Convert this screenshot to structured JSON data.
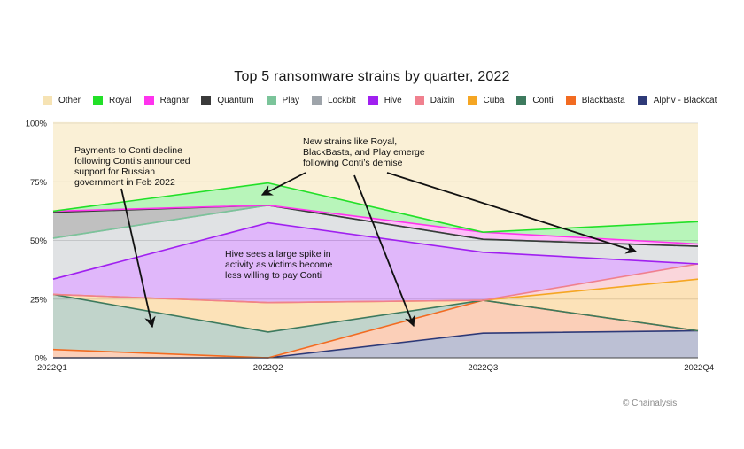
{
  "title": "Top 5 ransomware strains by quarter, 2022",
  "credit": "© Chainalysis",
  "chart_data": {
    "type": "area",
    "stacked": true,
    "title": "Top 5 ransomware strains by quarter, 2022",
    "xlabel": "",
    "ylabel": "",
    "categories": [
      "2022Q1",
      "2022Q2",
      "2022Q3",
      "2022Q4"
    ],
    "ylim": [
      0,
      100
    ],
    "yticks": [
      0,
      25,
      50,
      75,
      100
    ],
    "ytick_labels": [
      "0%",
      "25%",
      "50%",
      "75%",
      "100%"
    ],
    "grid": true,
    "legend_position": "top",
    "series": [
      {
        "name": "Alphv - Blackcat",
        "color": "#2e3a78",
        "values": [
          0,
          0,
          10.5,
          11.5
        ]
      },
      {
        "name": "Blackbasta",
        "color": "#f26b21",
        "values": [
          3.5,
          0,
          14,
          0
        ]
      },
      {
        "name": "Conti",
        "color": "#3d7a5e",
        "values": [
          23.5,
          11,
          0,
          0
        ]
      },
      {
        "name": "Cuba",
        "color": "#f5a623",
        "values": [
          0,
          12.5,
          0,
          22
        ]
      },
      {
        "name": "Daixin",
        "color": "#f0808e",
        "values": [
          0,
          0,
          0,
          6.5
        ]
      },
      {
        "name": "Hive",
        "color": "#a020f0",
        "values": [
          6.5,
          34,
          20.5,
          0
        ]
      },
      {
        "name": "Lockbit",
        "color": "#9ea4aa",
        "values": [
          17.5,
          7.5,
          5.5,
          7.5
        ]
      },
      {
        "name": "Play",
        "color": "#7bc49a",
        "values": [
          0,
          0,
          0,
          0
        ]
      },
      {
        "name": "Quantum",
        "color": "#3a3a3a",
        "values": [
          11,
          0,
          0,
          0
        ]
      },
      {
        "name": "Ragnar",
        "color": "#ff33ee",
        "values": [
          0.5,
          0,
          3,
          1
        ]
      },
      {
        "name": "Royal",
        "color": "#22e028",
        "values": [
          0,
          9.5,
          0,
          9.5
        ]
      },
      {
        "name": "Other",
        "color": "#f6e3b4",
        "values": [
          38,
          25.5,
          46.5,
          42
        ]
      }
    ],
    "annotations": [
      {
        "lines": [
          "Payments to Conti decline",
          "following Conti’s announced",
          "support for Russian",
          "government in Feb 2022"
        ]
      },
      {
        "lines": [
          "New strains like Royal,",
          "BlackBasta, and Play emerge",
          "following Conti’s demise"
        ]
      },
      {
        "lines": [
          "Hive sees a large spike in",
          "activity as victims become",
          "less willing to pay Conti"
        ]
      }
    ]
  },
  "legend_order": [
    "Other",
    "Royal",
    "Ragnar",
    "Quantum",
    "Play",
    "Lockbit",
    "Hive",
    "Daixin",
    "Cuba",
    "Conti",
    "Blackbasta",
    "Alphv - Blackcat"
  ]
}
